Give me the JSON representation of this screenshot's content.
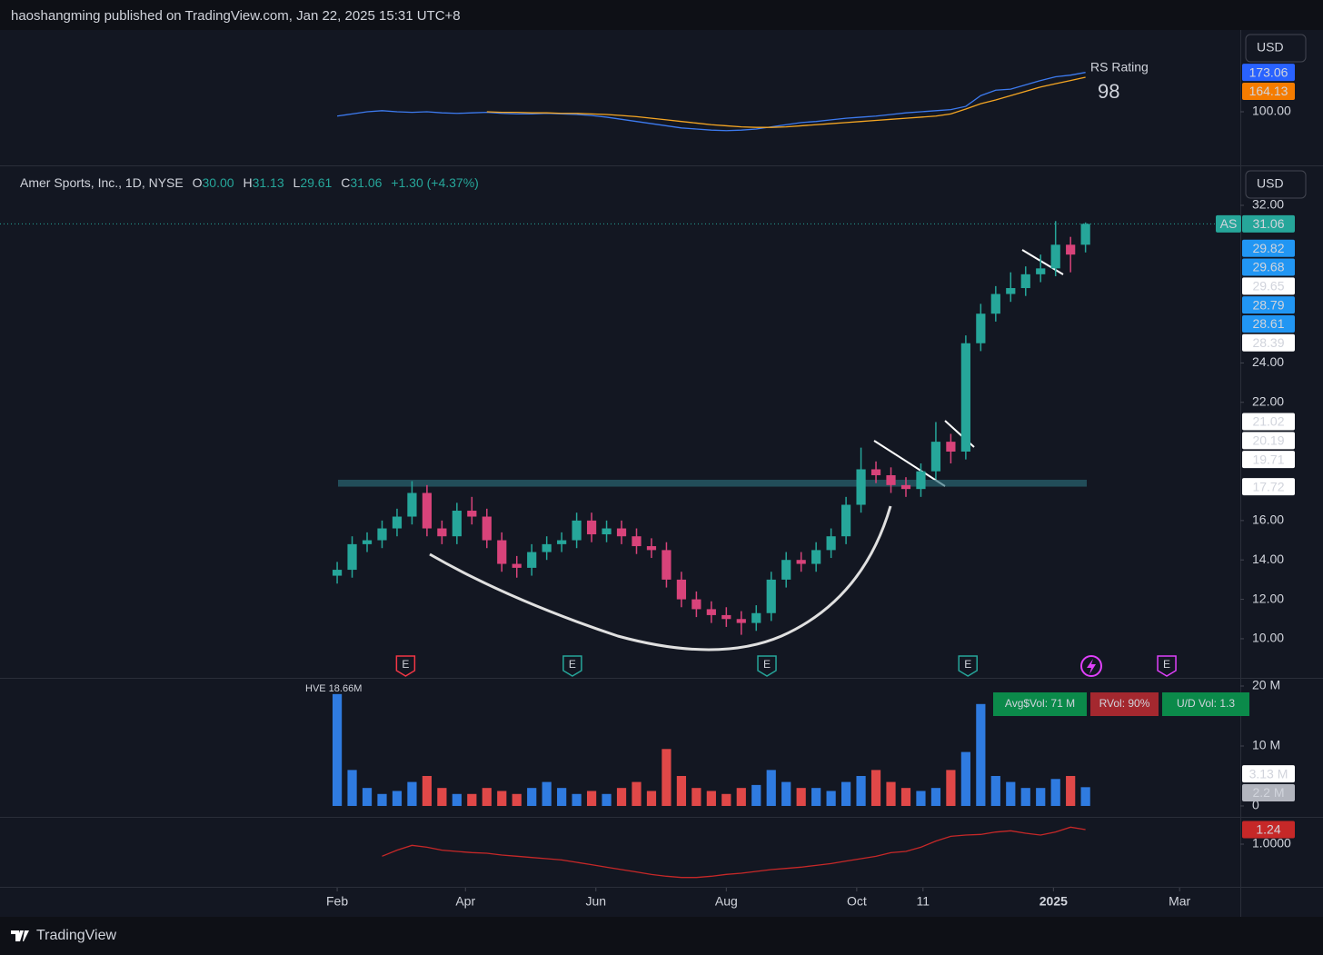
{
  "header": {
    "published": "haoshangming published on TradingView.com, Jan 22, 2025 15:31 UTC+8",
    "brand": "TradingView",
    "currency": "USD"
  },
  "chart_data": {
    "type": "candlestick",
    "title": "Amer Sports, Inc., 1D, NYSE",
    "legend": {
      "o_label": "O",
      "open": "30.00",
      "h_label": "H",
      "high": "31.13",
      "l_label": "L",
      "low": "29.61",
      "c_label": "C",
      "close": "31.06",
      "change": "+1.30 (+4.37%)"
    },
    "x": [
      0,
      7,
      14,
      21,
      28,
      35,
      42,
      49,
      56,
      63,
      70,
      77,
      84,
      91,
      98,
      105,
      112,
      119,
      126,
      133,
      140,
      147,
      154,
      161,
      168,
      175,
      182,
      189,
      196,
      203,
      210,
      217,
      224,
      231,
      238,
      245,
      252,
      259,
      266,
      273,
      280,
      287,
      294,
      301,
      308,
      315,
      322,
      329,
      336,
      343,
      350
    ],
    "xlim": [
      -157.7,
      422.4
    ],
    "xticks": [
      {
        "value": 0,
        "label": "Feb"
      },
      {
        "value": 60,
        "label": "Apr"
      },
      {
        "value": 121,
        "label": "Jun"
      },
      {
        "value": 182,
        "label": "Aug"
      },
      {
        "value": 243,
        "label": "Oct"
      },
      {
        "value": 274,
        "label": "11"
      },
      {
        "value": 335,
        "label": "2025"
      },
      {
        "value": 394,
        "label": "Mar"
      }
    ],
    "open": [
      13.2,
      13.5,
      14.8,
      15.0,
      15.6,
      16.2,
      17.4,
      15.6,
      15.2,
      16.5,
      16.2,
      15.0,
      13.8,
      13.6,
      14.4,
      14.8,
      15.0,
      16.0,
      15.3,
      15.6,
      15.2,
      14.7,
      14.5,
      13.0,
      12.0,
      11.5,
      11.2,
      11.0,
      10.8,
      11.3,
      13.0,
      14.0,
      13.8,
      14.5,
      15.2,
      16.8,
      18.6,
      18.3,
      17.8,
      17.6,
      18.5,
      20.0,
      19.5,
      25.0,
      26.5,
      27.5,
      27.8,
      28.5,
      28.8,
      30.0,
      30.0
    ],
    "high": [
      13.9,
      15.2,
      15.4,
      16.0,
      16.6,
      18.0,
      17.8,
      16.0,
      16.9,
      17.2,
      16.6,
      15.4,
      14.2,
      14.8,
      15.2,
      15.4,
      16.4,
      16.4,
      16.0,
      16.0,
      15.6,
      15.1,
      14.9,
      13.4,
      12.4,
      11.9,
      11.6,
      11.4,
      11.7,
      13.4,
      14.4,
      14.4,
      14.9,
      15.6,
      17.2,
      19.7,
      19.0,
      18.7,
      18.2,
      18.9,
      21.0,
      20.4,
      25.4,
      27.0,
      27.9,
      28.6,
      28.9,
      29.5,
      31.2,
      30.4,
      31.13
    ],
    "low": [
      12.8,
      13.1,
      14.4,
      14.6,
      15.2,
      15.8,
      15.2,
      14.8,
      14.8,
      15.8,
      14.6,
      13.4,
      13.1,
      13.2,
      14.0,
      14.4,
      14.6,
      14.9,
      14.9,
      14.8,
      14.3,
      14.1,
      12.6,
      11.6,
      11.1,
      10.8,
      10.6,
      10.2,
      10.4,
      10.9,
      12.6,
      13.4,
      13.4,
      14.1,
      14.8,
      16.4,
      17.9,
      17.4,
      17.2,
      17.2,
      18.1,
      18.9,
      19.1,
      24.6,
      26.1,
      27.1,
      27.4,
      28.1,
      28.4,
      28.6,
      29.61
    ],
    "close": [
      13.5,
      14.8,
      15.0,
      15.6,
      16.2,
      17.4,
      15.6,
      15.2,
      16.5,
      16.2,
      15.0,
      13.8,
      13.6,
      14.4,
      14.8,
      15.0,
      16.0,
      15.3,
      15.6,
      15.2,
      14.7,
      14.5,
      13.0,
      12.0,
      11.5,
      11.2,
      11.0,
      10.8,
      11.3,
      13.0,
      14.0,
      13.8,
      14.5,
      15.2,
      16.8,
      18.6,
      18.3,
      17.8,
      17.6,
      18.5,
      20.0,
      19.5,
      25.0,
      26.5,
      27.5,
      27.8,
      28.5,
      28.8,
      30.0,
      29.5,
      31.06
    ],
    "up_color": "#26a69a",
    "down_color": "#d8437a",
    "ylim": [
      8.06,
      33.89
    ],
    "yticks": [
      {
        "value": 10,
        "label": "10.00"
      },
      {
        "value": 12,
        "label": "12.00"
      },
      {
        "value": 14,
        "label": "14.00"
      },
      {
        "value": 16,
        "label": "16.00"
      },
      {
        "value": 22,
        "label": "22.00"
      },
      {
        "value": 24,
        "label": "24.00"
      },
      {
        "value": 32,
        "label": "32.00"
      }
    ],
    "resistance_zone": [
      17.72,
      18.07
    ],
    "ticker": "AS",
    "price_tags": [
      {
        "value": 31.06,
        "label": "31.06",
        "color": "#26a69a"
      },
      {
        "value": 29.82,
        "label": "29.82",
        "color": "#2196f3"
      },
      {
        "value": 29.68,
        "label": "29.68",
        "color": "#2196f3"
      },
      {
        "value": 29.65,
        "label": "29.65",
        "color": "#ffffff"
      },
      {
        "value": 28.79,
        "label": "28.79",
        "color": "#2196f3"
      },
      {
        "value": 28.61,
        "label": "28.61",
        "color": "#2196f3"
      },
      {
        "value": 28.39,
        "label": "28.39",
        "color": "#ffffff"
      },
      {
        "value": 21.02,
        "label": "21.02",
        "color": "#ffffff"
      },
      {
        "value": 20.19,
        "label": "20.19",
        "color": "#ffffff"
      },
      {
        "value": 19.71,
        "label": "19.71",
        "color": "#ffffff"
      },
      {
        "value": 17.72,
        "label": "17.72",
        "color": "#ffffff"
      }
    ],
    "events": [
      {
        "day": 32,
        "label": "E",
        "color": "#f23645"
      },
      {
        "day": 110,
        "label": "E",
        "color": "#26a69a"
      },
      {
        "day": 201,
        "label": "E",
        "color": "#26a69a"
      },
      {
        "day": 295,
        "label": "E",
        "color": "#26a69a"
      },
      {
        "day": 388,
        "label": "E",
        "color": "#e040fb"
      }
    ],
    "rs_panel": {
      "type": "line",
      "annotation": "RS Rating",
      "rating": "98",
      "ylim": [
        0.5,
        251.8
      ],
      "yticks": [
        {
          "value": 100,
          "label": "100.00"
        }
      ],
      "series": [
        {
          "name": "RS line",
          "color": "#3d7bf0",
          "values": [
            92,
            96,
            100,
            102,
            100,
            99,
            100,
            98,
            97,
            98,
            99,
            97,
            96,
            96,
            97,
            96,
            95,
            93,
            90,
            86,
            82,
            78,
            74,
            70,
            68,
            66,
            65,
            66,
            68,
            72,
            76,
            80,
            82,
            85,
            88,
            90,
            92,
            95,
            98,
            100,
            102,
            104,
            110,
            130,
            140,
            142,
            150,
            158,
            165,
            168,
            173.06
          ]
        },
        {
          "name": "RS average",
          "color": "#f5a623",
          "values": [
            null,
            null,
            null,
            null,
            null,
            null,
            null,
            null,
            null,
            null,
            100,
            99,
            99,
            98,
            98,
            97,
            97,
            96,
            95,
            93,
            91,
            88,
            85,
            82,
            79,
            76,
            74,
            72,
            71,
            71,
            72,
            74,
            76,
            78,
            80,
            82,
            84,
            86,
            88,
            90,
            92,
            96,
            105,
            115,
            122,
            130,
            138,
            146,
            152,
            158,
            164.13
          ]
        }
      ],
      "tags": [
        {
          "value": 173.06,
          "label": "173.06",
          "color": "#2962ff"
        },
        {
          "value": 164.13,
          "label": "164.13",
          "color": "#f57c00"
        }
      ]
    },
    "volume_panel": {
      "type": "bar",
      "ylim": [
        -1.67,
        21.06
      ],
      "yticks": [
        {
          "value": 0,
          "label": "0"
        },
        {
          "value": 10,
          "label": "10 M"
        },
        {
          "value": 20,
          "label": "20 M"
        }
      ],
      "values": [
        18.66,
        6,
        3,
        2,
        2.5,
        4,
        5,
        3,
        2,
        2,
        3,
        2.5,
        2,
        3,
        4,
        3,
        2,
        2.5,
        2,
        3,
        4,
        2.5,
        9.5,
        5,
        3,
        2.5,
        2,
        3,
        3.5,
        6,
        4,
        3,
        3,
        2.5,
        4,
        5,
        6,
        4,
        3,
        2.5,
        3,
        6,
        9,
        17,
        5,
        4,
        3,
        3,
        4.5,
        5,
        3.13
      ],
      "up_color": "#2f7be0",
      "down_color": "#e04848",
      "hve_label": "HVE 18.66M",
      "tags": [
        {
          "value": 2.2,
          "label": "2.2 M",
          "color": "#b2b5be"
        },
        {
          "value": 3.13,
          "label": "3.13 M",
          "color": "#ffffff"
        }
      ],
      "badges": [
        {
          "label": "Avg$Vol: 71 M",
          "color": "#0b8a4a"
        },
        {
          "label": "RVol: 90%",
          "color": "#a4282f"
        },
        {
          "label": "U/D Vol: 1.3",
          "color": "#0b8a4a"
        }
      ]
    },
    "ratio_panel": {
      "type": "line",
      "ylim": [
        0.31,
        1.435
      ],
      "yticks": [
        {
          "value": 1,
          "label": "1.0000"
        }
      ],
      "series": [
        {
          "name": "ratio",
          "color": "#c62828",
          "values": [
            null,
            null,
            null,
            0.8,
            0.9,
            0.98,
            0.95,
            0.9,
            0.88,
            0.86,
            0.85,
            0.82,
            0.8,
            0.78,
            0.76,
            0.74,
            0.7,
            0.66,
            0.62,
            0.58,
            0.54,
            0.5,
            0.47,
            0.45,
            0.45,
            0.47,
            0.5,
            0.52,
            0.55,
            0.58,
            0.6,
            0.62,
            0.65,
            0.68,
            0.72,
            0.76,
            0.8,
            0.86,
            0.88,
            0.95,
            1.05,
            1.13,
            1.15,
            1.16,
            1.2,
            1.22,
            1.18,
            1.15,
            1.2,
            1.28,
            1.24
          ]
        }
      ],
      "tags": [
        {
          "value": 1.24,
          "label": "1.24",
          "color": "#c62828"
        }
      ]
    }
  }
}
